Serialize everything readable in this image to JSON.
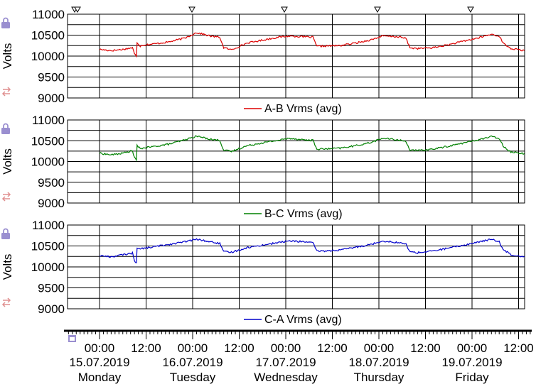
{
  "chart_data": [
    {
      "type": "line",
      "ylabel": "Volts",
      "ylim": [
        9000,
        11000
      ],
      "yticks": [
        "11000",
        "10500",
        "10000",
        "9500",
        "9000"
      ],
      "xlim": [
        "2019-07-15T00:00",
        "2019-07-20T00:00"
      ],
      "color": "#dd0000",
      "series": [
        {
          "name": "A-B Vrms (avg)",
          "x": [
            "2019-07-15T00:00",
            "2019-07-15T03:00",
            "2019-07-15T06:00",
            "2019-07-15T08:30",
            "2019-07-15T09:00",
            "2019-07-15T09:30",
            "2019-07-15T09:40",
            "2019-07-15T10:30",
            "2019-07-15T11:00",
            "2019-07-15T14:00",
            "2019-07-15T18:00",
            "2019-07-15T22:00",
            "2019-07-16T01:00",
            "2019-07-16T05:00",
            "2019-07-16T07:00",
            "2019-07-16T08:00",
            "2019-07-16T10:00",
            "2019-07-16T14:00",
            "2019-07-16T18:00",
            "2019-07-16T22:00",
            "2019-07-17T01:00",
            "2019-07-17T05:00",
            "2019-07-17T07:00",
            "2019-07-17T08:00",
            "2019-07-17T10:00",
            "2019-07-17T14:00",
            "2019-07-17T18:00",
            "2019-07-17T22:00",
            "2019-07-18T01:00",
            "2019-07-18T05:00",
            "2019-07-18T07:00",
            "2019-07-18T08:00",
            "2019-07-18T10:00",
            "2019-07-18T14:00",
            "2019-07-18T18:00",
            "2019-07-18T22:00",
            "2019-07-19T01:00",
            "2019-07-19T05:00",
            "2019-07-19T07:00",
            "2019-07-19T08:00",
            "2019-07-19T10:00",
            "2019-07-19T12:00",
            "2019-07-19T13:30"
          ],
          "y": [
            10160,
            10130,
            10160,
            10200,
            10050,
            10000,
            10330,
            10240,
            10260,
            10290,
            10340,
            10430,
            10560,
            10470,
            10450,
            10200,
            10150,
            10310,
            10380,
            10450,
            10480,
            10460,
            10450,
            10230,
            10240,
            10250,
            10310,
            10390,
            10480,
            10460,
            10420,
            10200,
            10180,
            10200,
            10270,
            10360,
            10420,
            10520,
            10480,
            10310,
            10180,
            10150,
            10130
          ]
        }
      ]
    },
    {
      "type": "line",
      "ylabel": "Volts",
      "ylim": [
        9000,
        11000
      ],
      "yticks": [
        "11000",
        "10500",
        "10000",
        "9500",
        "9000"
      ],
      "xlim": [
        "2019-07-15T00:00",
        "2019-07-20T00:00"
      ],
      "color": "#008000",
      "series": [
        {
          "name": "B-C Vrms (avg)",
          "x": [
            "2019-07-15T00:00",
            "2019-07-15T03:00",
            "2019-07-15T06:00",
            "2019-07-15T08:30",
            "2019-07-15T09:00",
            "2019-07-15T09:30",
            "2019-07-15T09:40",
            "2019-07-15T10:30",
            "2019-07-15T11:00",
            "2019-07-15T14:00",
            "2019-07-15T18:00",
            "2019-07-15T22:00",
            "2019-07-16T01:00",
            "2019-07-16T05:00",
            "2019-07-16T07:00",
            "2019-07-16T08:00",
            "2019-07-16T10:00",
            "2019-07-16T14:00",
            "2019-07-16T18:00",
            "2019-07-16T22:00",
            "2019-07-17T01:00",
            "2019-07-17T05:00",
            "2019-07-17T07:00",
            "2019-07-17T08:00",
            "2019-07-17T10:00",
            "2019-07-17T14:00",
            "2019-07-17T18:00",
            "2019-07-17T22:00",
            "2019-07-18T01:00",
            "2019-07-18T05:00",
            "2019-07-18T07:00",
            "2019-07-18T08:00",
            "2019-07-18T10:00",
            "2019-07-18T14:00",
            "2019-07-18T18:00",
            "2019-07-18T22:00",
            "2019-07-19T01:00",
            "2019-07-19T05:00",
            "2019-07-19T07:00",
            "2019-07-19T08:00",
            "2019-07-19T10:00",
            "2019-07-19T12:00",
            "2019-07-19T13:30"
          ],
          "y": [
            10200,
            10160,
            10200,
            10260,
            10090,
            10030,
            10390,
            10300,
            10320,
            10360,
            10420,
            10520,
            10610,
            10530,
            10510,
            10270,
            10240,
            10380,
            10450,
            10510,
            10560,
            10520,
            10510,
            10300,
            10300,
            10320,
            10380,
            10460,
            10560,
            10520,
            10480,
            10280,
            10260,
            10300,
            10370,
            10450,
            10510,
            10600,
            10560,
            10380,
            10230,
            10210,
            10190
          ]
        }
      ]
    },
    {
      "type": "line",
      "ylabel": "Volts",
      "ylim": [
        9000,
        11000
      ],
      "yticks": [
        "11000",
        "10500",
        "10000",
        "9500",
        "9000"
      ],
      "xlim": [
        "2019-07-15T00:00",
        "2019-07-20T00:00"
      ],
      "color": "#0000cc",
      "series": [
        {
          "name": "C-A Vrms (avg)",
          "x": [
            "2019-07-15T00:00",
            "2019-07-15T03:00",
            "2019-07-15T06:00",
            "2019-07-15T08:30",
            "2019-07-15T09:00",
            "2019-07-15T09:30",
            "2019-07-15T09:40",
            "2019-07-15T10:30",
            "2019-07-15T11:00",
            "2019-07-15T14:00",
            "2019-07-15T18:00",
            "2019-07-15T22:00",
            "2019-07-16T01:00",
            "2019-07-16T05:00",
            "2019-07-16T07:00",
            "2019-07-16T08:00",
            "2019-07-16T10:00",
            "2019-07-16T14:00",
            "2019-07-16T18:00",
            "2019-07-16T22:00",
            "2019-07-17T01:00",
            "2019-07-17T05:00",
            "2019-07-17T07:00",
            "2019-07-17T08:00",
            "2019-07-17T10:00",
            "2019-07-17T14:00",
            "2019-07-17T18:00",
            "2019-07-17T22:00",
            "2019-07-18T01:00",
            "2019-07-18T05:00",
            "2019-07-18T07:00",
            "2019-07-18T08:00",
            "2019-07-18T10:00",
            "2019-07-18T14:00",
            "2019-07-18T18:00",
            "2019-07-18T22:00",
            "2019-07-19T01:00",
            "2019-07-19T05:00",
            "2019-07-19T07:00",
            "2019-07-19T08:00",
            "2019-07-19T10:00",
            "2019-07-19T12:00",
            "2019-07-19T13:30"
          ],
          "y": [
            10270,
            10240,
            10290,
            10330,
            10160,
            10090,
            10460,
            10420,
            10440,
            10480,
            10540,
            10600,
            10660,
            10590,
            10560,
            10360,
            10350,
            10460,
            10520,
            10580,
            10620,
            10600,
            10570,
            10380,
            10380,
            10400,
            10470,
            10540,
            10620,
            10580,
            10540,
            10360,
            10340,
            10380,
            10450,
            10520,
            10580,
            10660,
            10600,
            10420,
            10300,
            10260,
            10250
          ]
        }
      ]
    }
  ],
  "x_axis": {
    "ticks": [
      {
        "time": "00:00",
        "date": "15.07.2019",
        "day": "Monday"
      },
      {
        "time": "12:00",
        "date": "",
        "day": ""
      },
      {
        "time": "00:00",
        "date": "16.07.2019",
        "day": "Tuesday"
      },
      {
        "time": "12:00",
        "date": "",
        "day": ""
      },
      {
        "time": "00:00",
        "date": "17.07.2019",
        "day": "Wednesday"
      },
      {
        "time": "12:00",
        "date": "",
        "day": ""
      },
      {
        "time": "00:00",
        "date": "18.07.2019",
        "day": "Thursday"
      },
      {
        "time": "12:00",
        "date": "",
        "day": ""
      },
      {
        "time": "00:00",
        "date": "19.07.2019",
        "day": "Friday"
      },
      {
        "time": "12:00",
        "date": "",
        "day": ""
      }
    ]
  },
  "icons": [
    "lock-icon",
    "swap-icon",
    "triangle-marker-icon"
  ],
  "colors": {
    "grid": "#000000",
    "minor_grid": "#b0b0b0",
    "icon_lock": "#9a8fd0",
    "icon_swap": "#e09090"
  }
}
